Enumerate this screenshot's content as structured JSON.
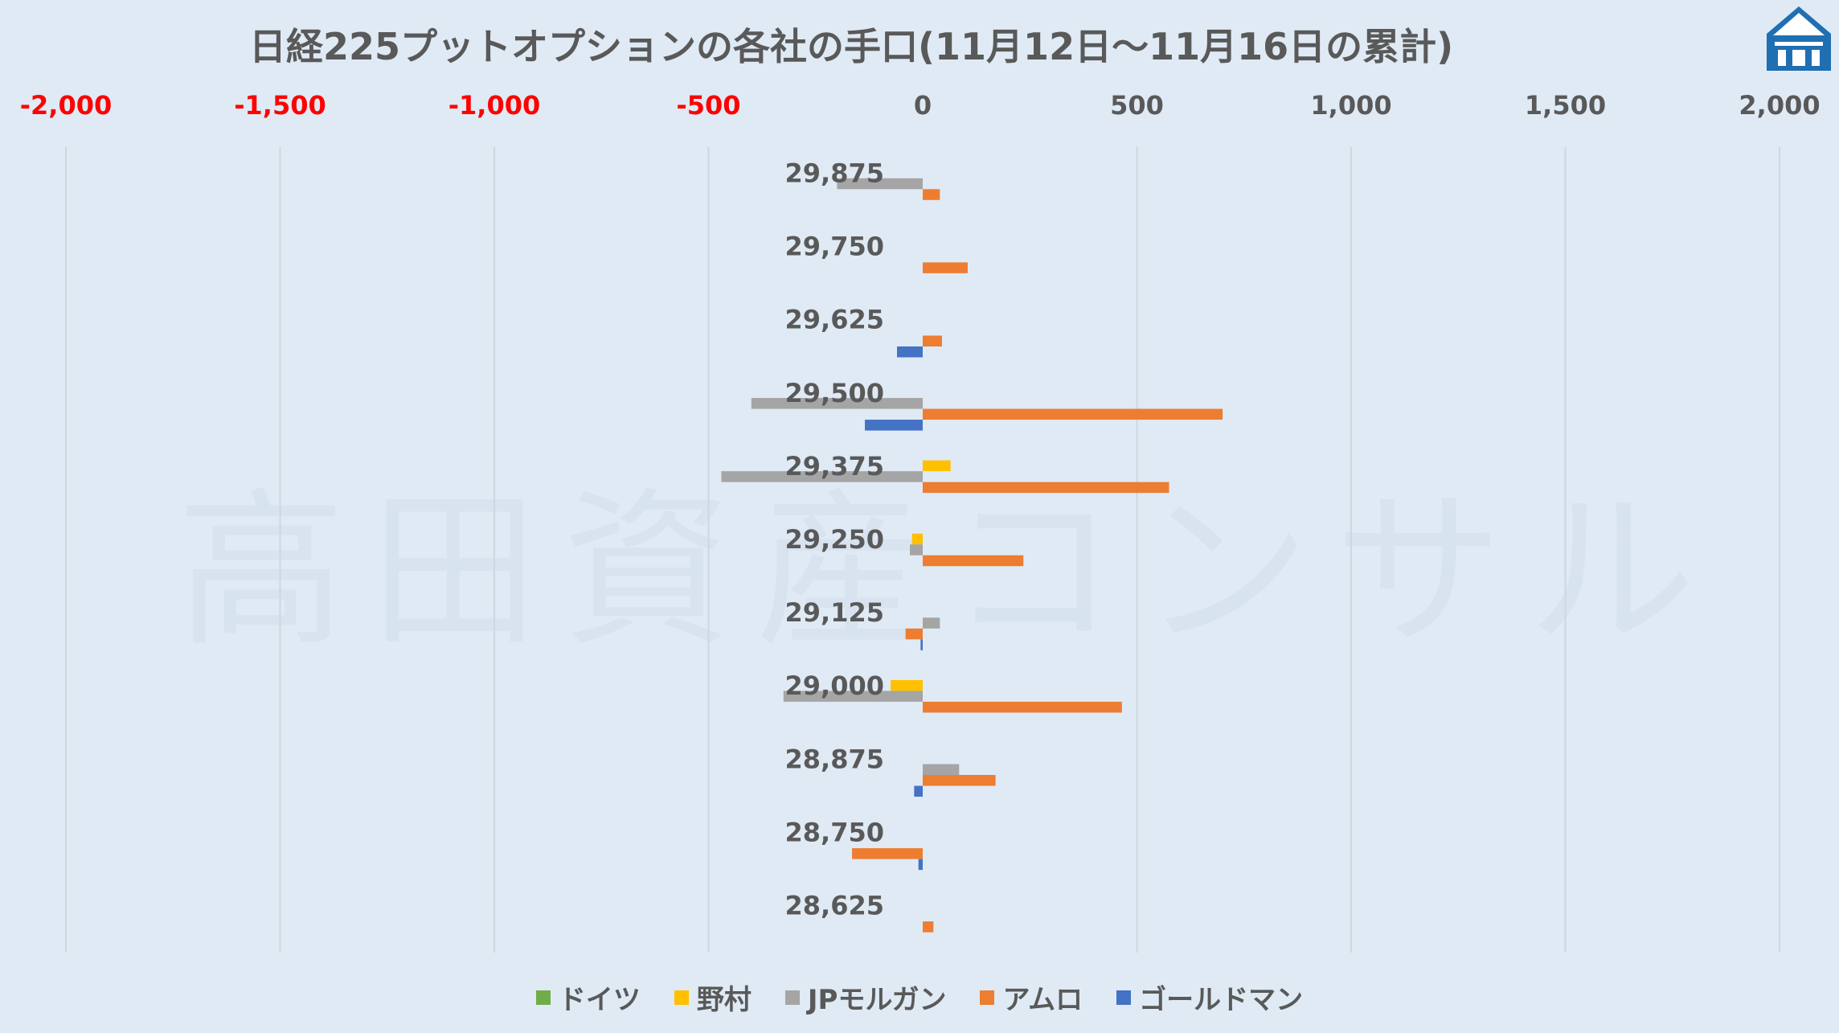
{
  "chart_data": {
    "type": "bar",
    "orientation": "horizontal",
    "title": "日経225プットオプションの各社の手口(11月12日～11月16日の累計)",
    "xlim": [
      -2000,
      2000
    ],
    "x_ticks": [
      -2000,
      -1500,
      -1000,
      -500,
      0,
      500,
      1000,
      1500,
      2000
    ],
    "x_tick_labels": [
      "-2,000",
      "-1,500",
      "-1,000",
      "-500",
      "0",
      "500",
      "1,000",
      "1,500",
      "2,000"
    ],
    "negative_tick_color": "#ff0000",
    "positive_tick_color": "#595959",
    "grid": true,
    "legend_position": "bottom",
    "categories": [
      "29,875",
      "29,750",
      "29,625",
      "29,500",
      "29,375",
      "29,250",
      "29,125",
      "29,000",
      "28,875",
      "28,750",
      "28,625"
    ],
    "series": [
      {
        "name": "ドイツ",
        "color": "#70ad47",
        "values": [
          0,
          0,
          0,
          0,
          0,
          0,
          0,
          0,
          0,
          0,
          0
        ]
      },
      {
        "name": "野村",
        "color": "#ffc000",
        "values": [
          0,
          0,
          0,
          0,
          65,
          -25,
          0,
          -75,
          0,
          0,
          0
        ]
      },
      {
        "name": "JPモルガン",
        "color": "#a5a5a5",
        "values": [
          -200,
          0,
          0,
          -400,
          -470,
          -30,
          40,
          -325,
          85,
          0,
          0
        ]
      },
      {
        "name": "アムロ",
        "color": "#ed7d31",
        "values": [
          40,
          105,
          45,
          700,
          575,
          235,
          -40,
          465,
          170,
          -165,
          25
        ]
      },
      {
        "name": "ゴールドマン",
        "color": "#4472c4",
        "values": [
          0,
          0,
          -60,
          -135,
          0,
          0,
          -5,
          0,
          -20,
          -10,
          0
        ]
      }
    ]
  },
  "watermark_text": "高田資産コンサル",
  "logo_icon": "takada-logo-icon"
}
